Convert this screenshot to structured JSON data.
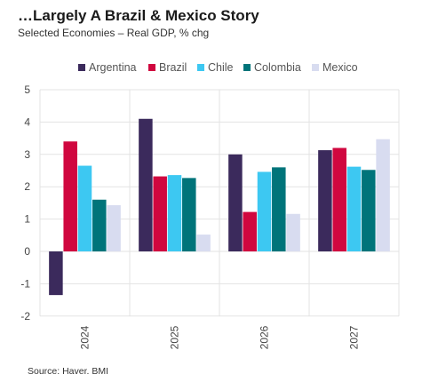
{
  "header": {
    "title": "…Largely A Brazil & Mexico Story",
    "subtitle": "Selected Economies – Real GDP, % chg"
  },
  "footer": {
    "source": "Source: Haver. BMI"
  },
  "chart_data": {
    "type": "bar",
    "categories": [
      "2024",
      "2025",
      "2026",
      "2027"
    ],
    "series": [
      {
        "name": "Argentina",
        "color": "#3b2a5c",
        "values": [
          -1.35,
          4.1,
          3.0,
          3.13
        ]
      },
      {
        "name": "Brazil",
        "color": "#d0073f",
        "values": [
          3.4,
          2.32,
          1.22,
          3.2
        ]
      },
      {
        "name": "Chile",
        "color": "#3dc8f2",
        "values": [
          2.65,
          2.36,
          2.46,
          2.62
        ]
      },
      {
        "name": "Colombia",
        "color": "#00747a",
        "values": [
          1.6,
          2.27,
          2.6,
          2.52
        ]
      },
      {
        "name": "Mexico",
        "color": "#d8dcf0",
        "values": [
          1.43,
          0.52,
          1.16,
          3.47
        ]
      }
    ],
    "yticks": [
      5,
      4,
      3,
      2,
      1,
      0,
      -1,
      -2
    ],
    "ylim": [
      -2,
      5
    ],
    "legend_position": "top",
    "grid": true
  }
}
